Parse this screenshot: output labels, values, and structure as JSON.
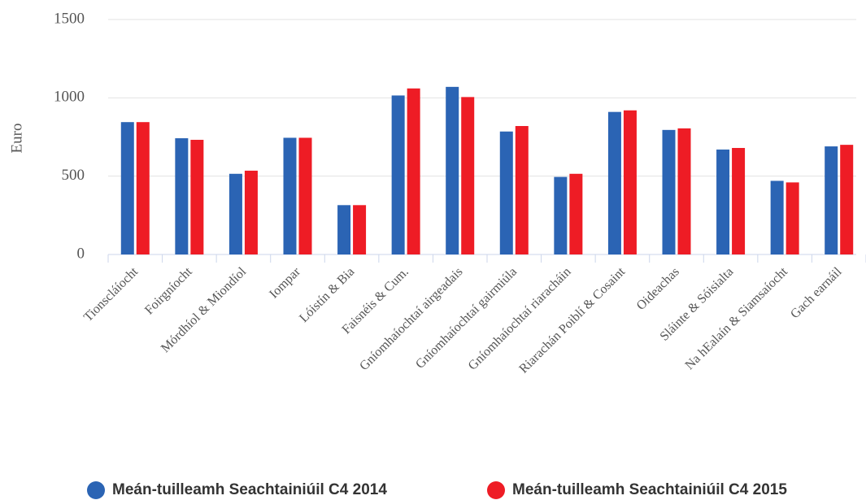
{
  "chart_data": {
    "type": "bar",
    "y_label": "Euro",
    "categories": [
      "Tionscláíocht",
      "Foirgníocht",
      "Mórdhíol & Miondíol",
      "Iompar",
      "Lóistín & Bia",
      "Faisnéis & Cum.",
      "Gníomhaíochtaí airgeadais",
      "Gníomhaíochtaí gairmiúla",
      "Gníomhaíochtaí riaracháin",
      "Riarachán Poiblí & Cosaint",
      "Oideachas",
      "Sláinte & Sóisialta",
      "Na hEalaín & Siamsaíocht",
      "Gach earnáil"
    ],
    "series": [
      {
        "name": "Meán-tuilleamh Seachtainiúil C4 2014",
        "color": "#2b64b4",
        "values": [
          845,
          742,
          515,
          745,
          315,
          1015,
          1070,
          785,
          495,
          910,
          795,
          670,
          470,
          690
        ]
      },
      {
        "name": "Meán-tuilleamh Seachtainiúil C4 2015",
        "color": "#ee1c25",
        "values": [
          845,
          732,
          535,
          745,
          315,
          1060,
          1005,
          820,
          515,
          920,
          805,
          680,
          460,
          700
        ]
      }
    ],
    "ylim": [
      0,
      1500
    ],
    "yticks": [
      0,
      500,
      1000,
      1500
    ],
    "grid": true,
    "legend": "bottom"
  }
}
